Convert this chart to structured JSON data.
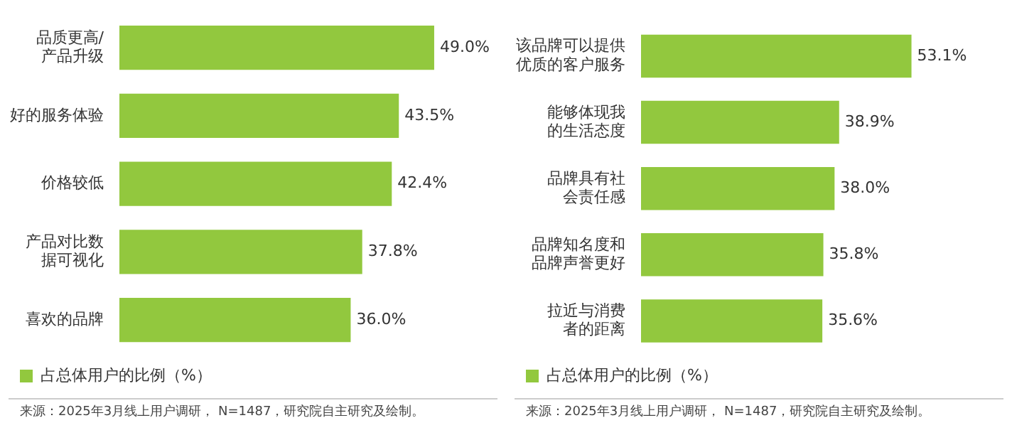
{
  "chart_data": [
    {
      "type": "bar",
      "orientation": "horizontal",
      "categories": [
        "品质更高/产品升级",
        "好的服务体验",
        "价格较低",
        "产品对比数据可视化",
        "喜欢的品牌"
      ],
      "series": [
        {
          "name": "占总体用户的比例（%）",
          "color": "#92c83e",
          "values": [
            49.0,
            43.5,
            42.4,
            37.8,
            36.0
          ],
          "value_labels": [
            "49.0%",
            "43.5%",
            "42.4%",
            "37.8%",
            "36.0%"
          ]
        }
      ],
      "legend": "bottom left",
      "annotations": [
        "来源：2025年3月线上用户调研， N=1487，研究院自主研究及绘制。"
      ]
    },
    {
      "type": "bar",
      "orientation": "horizontal",
      "categories": [
        "该品牌可以提供优质的客户服务",
        "能够体现我的生活态度",
        "品牌具有社会责任感",
        "品牌知名度和品牌声誉更好",
        "拉近与消费者的距离"
      ],
      "series": [
        {
          "name": "占总体用户的比例（%）",
          "color": "#92c83e",
          "values": [
            53.1,
            38.9,
            38.0,
            35.8,
            35.6
          ],
          "value_labels": [
            "53.1%",
            "38.9%",
            "38.0%",
            "35.8%",
            "35.6%"
          ]
        }
      ],
      "legend": "bottom left",
      "annotations": [
        "来源：2025年3月线上用户调研， N=1487，研究院自主研究及绘制。"
      ]
    }
  ]
}
